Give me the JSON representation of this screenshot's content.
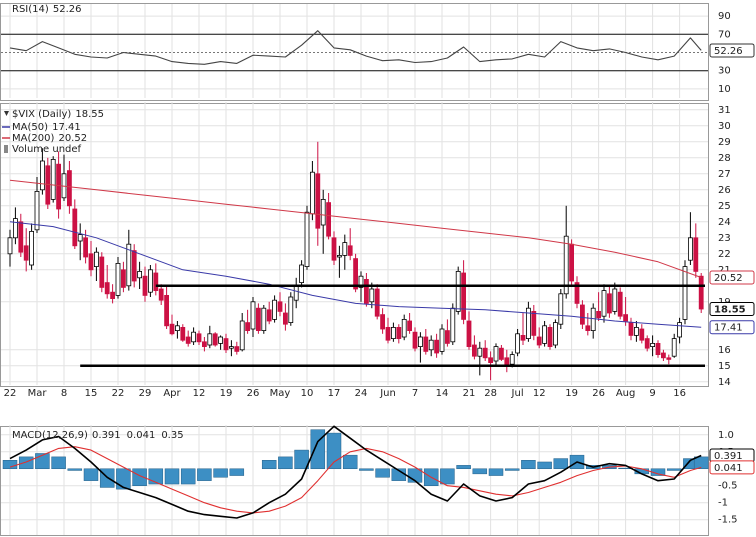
{
  "chart_data": [
    {
      "type": "line",
      "name": "RSI(14)",
      "color": "#444444",
      "x": [
        0,
        3,
        6,
        9,
        12,
        15,
        18,
        21,
        24,
        27,
        30,
        33,
        36,
        39,
        42,
        45,
        48,
        51,
        54,
        57,
        60,
        63,
        66,
        69,
        72,
        75,
        78,
        81,
        84,
        87,
        90,
        93,
        96,
        99,
        102,
        105,
        108,
        111,
        114,
        117,
        120,
        123,
        126,
        128
      ],
      "values": [
        55,
        52,
        62,
        55,
        48,
        45,
        44,
        50,
        48,
        46,
        40,
        38,
        37,
        40,
        38,
        47,
        46,
        45,
        58,
        74,
        55,
        53,
        46,
        41,
        42,
        39,
        40,
        44,
        56,
        40,
        42,
        43,
        48,
        45,
        62,
        55,
        52,
        54,
        50,
        45,
        42,
        46,
        66,
        52.26
      ],
      "ylim": [
        0,
        100
      ],
      "yticks": [
        10,
        30,
        70,
        90
      ],
      "bands": [
        30,
        70
      ],
      "midline": 50
    },
    {
      "type": "candlestick",
      "title": "$VIX (Daily)",
      "volume_label": "Volume undef",
      "up_color": "#000000",
      "down_color": "#cc1144",
      "categories": [
        "22",
        null,
        null,
        null,
        null,
        "Mar",
        null,
        null,
        null,
        null,
        "8",
        null,
        null,
        null,
        null,
        "15",
        null,
        null,
        null,
        null,
        "22",
        null,
        null,
        null,
        null,
        "29",
        null,
        null,
        null,
        null,
        "Apr",
        null,
        null,
        null,
        null,
        "12",
        null,
        null,
        null,
        null,
        "19",
        null,
        null,
        null,
        null,
        "26",
        null,
        null,
        null,
        null,
        "May",
        null,
        null,
        null,
        null,
        "10",
        null,
        null,
        null,
        null,
        "17",
        null,
        null,
        null,
        null,
        "24",
        null,
        null,
        null,
        null,
        "Jun",
        null,
        null,
        null,
        null,
        "7",
        null,
        null,
        null,
        null,
        "14",
        null,
        null,
        null,
        null,
        "21",
        null,
        null,
        null,
        "28",
        null,
        null,
        null,
        null,
        "Jul",
        null,
        null,
        null,
        "12",
        null,
        null,
        null,
        null,
        null,
        "19",
        null,
        null,
        null,
        null,
        "26",
        null,
        null,
        null,
        null,
        "Aug",
        null,
        null,
        null,
        null,
        "9",
        null,
        null,
        null,
        null,
        "16",
        null,
        null,
        null,
        null
      ],
      "ohlc": [
        [
          22.0,
          23.5,
          21.2,
          23.0
        ],
        [
          23.0,
          24.9,
          22.6,
          24.2
        ],
        [
          24.0,
          24.5,
          21.8,
          22.1
        ],
        [
          22.5,
          23.6,
          20.9,
          21.6
        ],
        [
          21.3,
          23.9,
          21.0,
          23.4
        ],
        [
          23.5,
          26.8,
          23.3,
          25.9
        ],
        [
          26.0,
          28.6,
          25.7,
          27.8
        ],
        [
          27.5,
          28.0,
          24.8,
          25.1
        ],
        [
          25.4,
          28.1,
          25.2,
          27.9
        ],
        [
          27.6,
          28.4,
          24.2,
          24.8
        ],
        [
          25.5,
          28.2,
          25.3,
          27.0
        ],
        [
          27.2,
          27.8,
          24.5,
          25.0
        ],
        [
          24.8,
          25.4,
          22.3,
          22.5
        ],
        [
          22.8,
          23.9,
          21.6,
          23.2
        ],
        [
          23.0,
          23.5,
          21.4,
          21.8
        ],
        [
          22.0,
          22.8,
          20.6,
          21.0
        ],
        [
          21.2,
          22.4,
          20.3,
          22.1
        ],
        [
          21.8,
          22.1,
          19.6,
          19.9
        ],
        [
          20.2,
          21.3,
          19.2,
          19.5
        ],
        [
          19.6,
          20.1,
          18.9,
          19.2
        ],
        [
          19.4,
          21.8,
          19.2,
          21.4
        ],
        [
          21.0,
          21.5,
          19.6,
          19.9
        ],
        [
          20.0,
          23.5,
          19.7,
          22.6
        ],
        [
          22.2,
          22.6,
          19.9,
          20.3
        ],
        [
          20.5,
          21.5,
          19.8,
          20.9
        ],
        [
          20.6,
          21.2,
          19.0,
          19.4
        ],
        [
          19.6,
          21.3,
          19.3,
          21.0
        ],
        [
          20.8,
          21.4,
          19.4,
          19.7
        ],
        [
          19.8,
          20.1,
          18.8,
          19.1
        ],
        [
          19.4,
          20.0,
          17.3,
          17.5
        ],
        [
          17.6,
          18.2,
          16.9,
          17.0
        ],
        [
          17.2,
          17.8,
          16.7,
          17.5
        ],
        [
          17.4,
          17.6,
          16.5,
          16.6
        ],
        [
          16.8,
          17.2,
          16.2,
          16.4
        ],
        [
          16.5,
          17.4,
          16.3,
          17.1
        ],
        [
          17.0,
          17.2,
          16.3,
          16.5
        ],
        [
          16.5,
          16.8,
          15.9,
          16.2
        ],
        [
          16.3,
          17.5,
          16.1,
          17.0
        ],
        [
          17.0,
          17.1,
          16.2,
          16.3
        ],
        [
          16.4,
          16.9,
          16.0,
          16.8
        ],
        [
          16.7,
          17.0,
          15.8,
          16.0
        ],
        [
          16.1,
          16.6,
          15.6,
          16.2
        ],
        [
          16.2,
          16.5,
          15.7,
          15.9
        ],
        [
          16.0,
          18.3,
          15.9,
          17.8
        ],
        [
          17.7,
          18.5,
          17.0,
          17.2
        ],
        [
          17.3,
          19.3,
          16.8,
          19.0
        ],
        [
          18.6,
          18.9,
          17.0,
          17.2
        ],
        [
          17.2,
          18.8,
          17.0,
          18.6
        ],
        [
          18.5,
          19.0,
          17.6,
          17.8
        ],
        [
          17.9,
          19.4,
          17.7,
          19.1
        ],
        [
          19.0,
          19.6,
          18.1,
          18.4
        ],
        [
          18.3,
          18.9,
          17.2,
          17.6
        ],
        [
          17.7,
          19.6,
          17.5,
          19.3
        ],
        [
          19.1,
          20.5,
          18.6,
          20.0
        ],
        [
          20.2,
          21.6,
          19.9,
          21.3
        ],
        [
          21.2,
          25.0,
          21.0,
          24.6
        ],
        [
          24.5,
          27.8,
          24.1,
          27.1
        ],
        [
          27.0,
          29.0,
          22.5,
          23.6
        ],
        [
          23.8,
          26.0,
          22.0,
          25.4
        ],
        [
          25.2,
          25.8,
          22.9,
          23.1
        ],
        [
          23.0,
          23.4,
          21.3,
          21.6
        ],
        [
          21.8,
          22.5,
          20.5,
          21.9
        ],
        [
          21.9,
          23.2,
          21.0,
          22.7
        ],
        [
          22.5,
          23.6,
          21.6,
          21.9
        ],
        [
          21.7,
          22.0,
          19.6,
          19.8
        ],
        [
          19.9,
          20.9,
          19.0,
          20.6
        ],
        [
          20.4,
          20.8,
          18.7,
          18.9
        ],
        [
          19.0,
          20.2,
          18.6,
          19.8
        ],
        [
          19.8,
          20.1,
          17.9,
          18.1
        ],
        [
          18.2,
          18.6,
          17.0,
          17.3
        ],
        [
          17.4,
          18.0,
          16.4,
          16.6
        ],
        [
          16.7,
          17.7,
          16.5,
          17.4
        ],
        [
          17.4,
          17.6,
          16.4,
          16.7
        ],
        [
          16.8,
          18.2,
          16.6,
          17.9
        ],
        [
          17.8,
          18.3,
          17.0,
          17.2
        ],
        [
          17.1,
          17.4,
          15.9,
          16.1
        ],
        [
          16.2,
          17.1,
          15.2,
          16.8
        ],
        [
          16.8,
          17.3,
          15.7,
          15.9
        ],
        [
          16.0,
          16.9,
          15.6,
          16.6
        ],
        [
          16.6,
          17.0,
          15.5,
          15.8
        ],
        [
          15.9,
          17.6,
          15.7,
          17.3
        ],
        [
          17.2,
          17.9,
          16.2,
          16.4
        ],
        [
          16.5,
          18.9,
          16.3,
          18.6
        ],
        [
          18.4,
          21.2,
          18.2,
          20.9
        ],
        [
          20.8,
          21.6,
          17.6,
          17.9
        ],
        [
          17.8,
          18.4,
          16.0,
          16.2
        ],
        [
          16.3,
          16.9,
          15.4,
          15.6
        ],
        [
          15.6,
          16.5,
          14.4,
          16.1
        ],
        [
          16.1,
          16.6,
          15.3,
          15.5
        ],
        [
          15.5,
          15.9,
          14.1,
          15.2
        ],
        [
          15.3,
          16.4,
          15.0,
          16.2
        ],
        [
          16.1,
          16.3,
          15.3,
          15.4
        ],
        [
          15.5,
          16.0,
          14.6,
          15.1
        ],
        [
          15.1,
          15.9,
          14.9,
          15.7
        ],
        [
          15.8,
          17.3,
          15.6,
          17.0
        ],
        [
          16.9,
          18.3,
          16.3,
          16.6
        ],
        [
          16.7,
          19.0,
          16.5,
          18.6
        ],
        [
          18.4,
          18.8,
          16.6,
          16.9
        ],
        [
          16.8,
          17.4,
          16.1,
          16.3
        ],
        [
          16.4,
          17.8,
          16.2,
          17.5
        ],
        [
          17.4,
          17.6,
          16.0,
          16.2
        ],
        [
          16.3,
          17.9,
          16.1,
          17.7
        ],
        [
          17.6,
          19.8,
          17.3,
          19.5
        ],
        [
          19.5,
          25.0,
          19.2,
          23.1
        ],
        [
          22.6,
          22.9,
          20.0,
          20.3
        ],
        [
          20.2,
          20.6,
          18.6,
          18.9
        ],
        [
          18.8,
          19.1,
          17.3,
          17.6
        ],
        [
          17.5,
          18.3,
          16.9,
          17.2
        ],
        [
          17.2,
          18.9,
          16.7,
          18.6
        ],
        [
          18.4,
          19.6,
          17.8,
          18.0
        ],
        [
          18.1,
          20.1,
          17.7,
          19.7
        ],
        [
          19.5,
          20.0,
          18.0,
          18.3
        ],
        [
          18.4,
          20.2,
          18.2,
          19.8
        ],
        [
          19.6,
          19.9,
          17.9,
          18.1
        ],
        [
          18.2,
          19.3,
          17.5,
          17.8
        ],
        [
          17.7,
          18.0,
          16.6,
          16.9
        ],
        [
          16.9,
          17.8,
          16.5,
          17.4
        ],
        [
          17.3,
          17.6,
          16.4,
          16.6
        ],
        [
          16.7,
          16.9,
          15.9,
          16.1
        ],
        [
          16.2,
          16.9,
          15.6,
          16.4
        ],
        [
          16.4,
          16.6,
          15.5,
          15.7
        ],
        [
          15.8,
          16.0,
          15.3,
          15.5
        ],
        [
          15.5,
          15.7,
          15.1,
          15.4
        ],
        [
          15.6,
          17.0,
          15.5,
          16.7
        ],
        [
          16.8,
          18.0,
          16.4,
          17.7
        ],
        [
          17.9,
          21.6,
          17.6,
          21.2
        ],
        [
          21.6,
          24.6,
          21.3,
          23.0
        ],
        [
          23.0,
          23.9,
          20.5,
          20.9
        ],
        [
          20.6,
          20.8,
          18.3,
          18.55
        ]
      ],
      "series": [
        {
          "name": "MA(50)",
          "color": "#3a3aa8",
          "x": [
            0,
            8,
            16,
            24,
            32,
            40,
            48,
            56,
            64,
            72,
            80,
            88,
            96,
            104,
            112,
            120,
            128
          ],
          "values": [
            24.0,
            23.7,
            23.0,
            22.0,
            21.0,
            20.6,
            20.1,
            19.4,
            18.9,
            18.7,
            18.6,
            18.5,
            18.3,
            18.1,
            17.8,
            17.6,
            17.41
          ]
        },
        {
          "name": "MA(200)",
          "color": "#d03848",
          "x": [
            0,
            8,
            16,
            24,
            32,
            40,
            48,
            56,
            64,
            72,
            80,
            88,
            96,
            104,
            112,
            120,
            128
          ],
          "values": [
            26.6,
            26.3,
            26.0,
            25.7,
            25.4,
            25.1,
            24.8,
            24.5,
            24.2,
            23.9,
            23.6,
            23.3,
            23.0,
            22.6,
            22.1,
            21.5,
            20.52
          ]
        }
      ],
      "hlines": [
        {
          "value": 20,
          "start": 27
        },
        {
          "value": 15,
          "start": 13
        }
      ],
      "ylim": [
        13.8,
        31.3
      ],
      "yticks": [
        14,
        15,
        16,
        19,
        21,
        22,
        23,
        24,
        25,
        26,
        27,
        28,
        29,
        30,
        31
      ],
      "grid": true
    },
    {
      "type": "macd",
      "name": "MACD(12,26,9)",
      "x": [
        0,
        3,
        6,
        9,
        12,
        15,
        18,
        21,
        24,
        27,
        30,
        33,
        36,
        39,
        42,
        45,
        48,
        51,
        54,
        57,
        60,
        63,
        66,
        69,
        72,
        75,
        78,
        81,
        84,
        87,
        90,
        93,
        96,
        99,
        102,
        105,
        108,
        111,
        114,
        117,
        120,
        123,
        126,
        128
      ],
      "series": [
        {
          "color": "#000000",
          "values": [
            0.3,
            0.55,
            0.85,
            0.95,
            0.6,
            0.2,
            -0.25,
            -0.55,
            -0.7,
            -0.85,
            -1.05,
            -1.25,
            -1.35,
            -1.4,
            -1.45,
            -1.3,
            -1.0,
            -0.75,
            -0.3,
            0.8,
            1.25,
            0.9,
            0.55,
            0.25,
            -0.05,
            -0.35,
            -0.75,
            -0.95,
            -0.45,
            -0.8,
            -0.95,
            -0.85,
            -0.45,
            -0.35,
            -0.1,
            0.2,
            0.05,
            0.15,
            0.1,
            -0.15,
            -0.35,
            -0.3,
            0.25,
            0.391
          ]
        },
        {
          "color": "#e03030",
          "values": [
            0.05,
            0.2,
            0.4,
            0.6,
            0.65,
            0.55,
            0.3,
            0.05,
            -0.2,
            -0.4,
            -0.6,
            -0.8,
            -1.0,
            -1.15,
            -1.25,
            -1.3,
            -1.25,
            -1.1,
            -0.85,
            -0.35,
            0.2,
            0.5,
            0.6,
            0.5,
            0.3,
            0.05,
            -0.25,
            -0.5,
            -0.55,
            -0.65,
            -0.75,
            -0.8,
            -0.7,
            -0.55,
            -0.4,
            -0.2,
            -0.05,
            0.05,
            0.08,
            0.0,
            -0.15,
            -0.25,
            -0.05,
            0.041
          ]
        },
        {
          "color": "#3d8fc4",
          "values": [
            0.25,
            0.35,
            0.45,
            0.35,
            -0.05,
            -0.35,
            -0.55,
            -0.6,
            -0.5,
            -0.45,
            -0.45,
            -0.45,
            -0.35,
            -0.25,
            -0.2,
            0.0,
            0.25,
            0.35,
            0.55,
            1.15,
            1.05,
            0.4,
            -0.05,
            -0.25,
            -0.35,
            -0.4,
            -0.5,
            -0.45,
            0.1,
            -0.15,
            -0.2,
            -0.05,
            0.25,
            0.2,
            0.3,
            0.4,
            0.1,
            0.1,
            0.02,
            -0.15,
            -0.2,
            -0.05,
            0.3,
            0.35
          ]
        }
      ],
      "ylim": [
        -1.95,
        1.2
      ],
      "yticks": [
        {
          "value": 1,
          "label": "1.0"
        },
        0.5,
        -0.5,
        -1,
        -1.5
      ]
    }
  ]
}
